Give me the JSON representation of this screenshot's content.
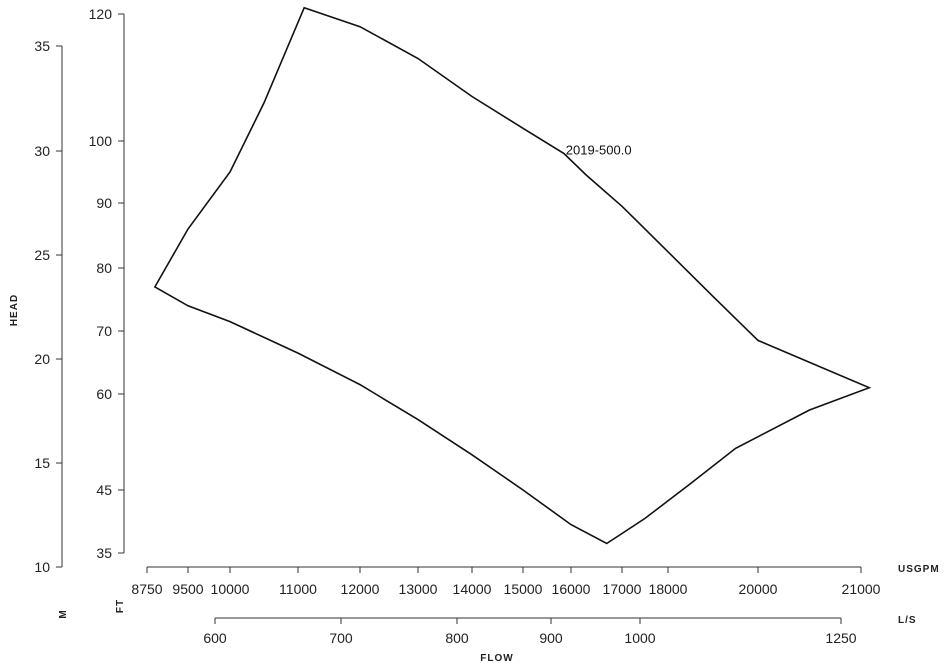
{
  "chart_data": {
    "type": "line",
    "xlabel": "FLOW",
    "ylabel": "HEAD",
    "grid": false,
    "axes": {
      "head_m": {
        "unit_label": "M",
        "ticks": [
          10,
          15,
          20,
          25,
          30,
          35
        ],
        "range": [
          10,
          35
        ]
      },
      "head_ft": {
        "unit_label": "FT",
        "ticks": [
          35,
          45,
          60,
          70,
          80,
          90,
          100,
          120
        ],
        "range": [
          35,
          120
        ]
      },
      "flow_usgpm": {
        "unit_label": "USGPM",
        "ticks": [
          8750,
          9500,
          10000,
          11000,
          12000,
          13000,
          14000,
          15000,
          16000,
          17000,
          18000,
          20000,
          21000
        ],
        "range": [
          8750,
          21000
        ]
      },
      "flow_ls": {
        "unit_label": "L/S",
        "ticks": [
          600,
          700,
          800,
          900,
          1000,
          1250
        ],
        "range": [
          600,
          1250
        ]
      }
    },
    "series": [
      {
        "name": "2019-500.0",
        "x_unit": "USGPM",
        "y_unit": "FT",
        "top_edge": {
          "x": [
            8894,
            9500,
            10000,
            10500,
            11100,
            12000,
            13000,
            14000,
            15000,
            15850,
            16300,
            17000,
            18000,
            19000,
            20000,
            21080
          ],
          "y": [
            77,
            86,
            95,
            106,
            121,
            118,
            113,
            107,
            102,
            98,
            94.5,
            89.5,
            82.5,
            75.5,
            68.5,
            61
          ]
        },
        "bottom_edge": {
          "x": [
            8894,
            9500,
            10000,
            11000,
            12000,
            13000,
            14000,
            15000,
            16000,
            16700,
            17500,
            18500,
            19500,
            20500,
            21080
          ],
          "y": [
            77,
            74,
            71.5,
            66.5,
            61.5,
            56,
            50.5,
            45,
            39.5,
            36.5,
            40.5,
            46,
            51.5,
            57.5,
            61
          ]
        }
      }
    ]
  }
}
